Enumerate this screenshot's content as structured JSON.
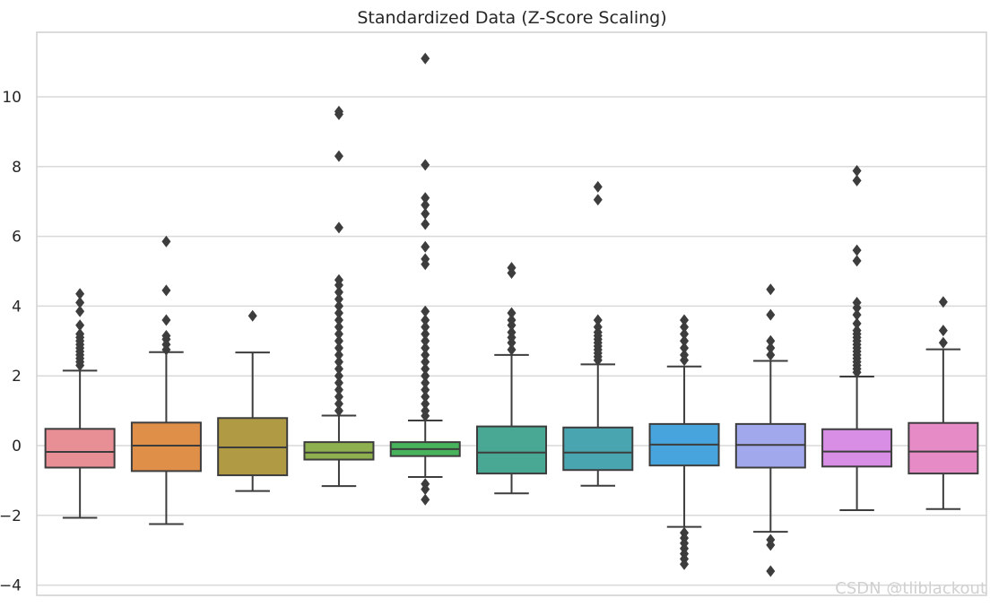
{
  "chart_data": {
    "type": "box",
    "title": "Standardized Data (Z-Score Scaling)",
    "xlabel": "",
    "ylabel": "",
    "ylim": [
      -4.2,
      11.8
    ],
    "yticks": [
      -4,
      -2,
      0,
      2,
      4,
      6,
      8,
      10
    ],
    "grid": true,
    "boxes": [
      {
        "color": "#e88f95",
        "q1": -0.63,
        "median": -0.18,
        "q3": 0.48,
        "whisker_low": -2.07,
        "whisker_high": 2.15,
        "outliers": [
          2.3,
          2.4,
          2.5,
          2.6,
          2.7,
          2.8,
          2.9,
          3.0,
          3.1,
          3.2,
          3.45,
          3.85,
          4.1,
          4.35
        ]
      },
      {
        "color": "#e08f48",
        "q1": -0.73,
        "median": 0.0,
        "q3": 0.66,
        "whisker_low": -2.25,
        "whisker_high": 2.68,
        "outliers": [
          2.75,
          2.9,
          3.05,
          3.15,
          3.6,
          4.45,
          5.85
        ]
      },
      {
        "color": "#b09a43",
        "q1": -0.85,
        "median": -0.05,
        "q3": 0.79,
        "whisker_low": -1.3,
        "whisker_high": 2.67,
        "outliers": [
          3.72
        ]
      },
      {
        "color": "#8fb04e",
        "q1": -0.4,
        "median": -0.2,
        "q3": 0.1,
        "whisker_low": -1.16,
        "whisker_high": 0.86,
        "outliers": [
          1.0,
          1.2,
          1.4,
          1.6,
          1.8,
          2.0,
          2.2,
          2.4,
          2.6,
          2.8,
          3.0,
          3.2,
          3.4,
          3.6,
          3.8,
          4.0,
          4.2,
          4.4,
          4.6,
          4.75,
          6.25,
          8.3,
          9.5,
          9.58
        ]
      },
      {
        "color": "#47b35c",
        "q1": -0.3,
        "median": -0.1,
        "q3": 0.1,
        "whisker_low": -0.9,
        "whisker_high": 0.72,
        "outliers": [
          -1.1,
          -1.25,
          -1.55,
          0.85,
          1.0,
          1.2,
          1.4,
          1.6,
          1.8,
          2.0,
          2.2,
          2.4,
          2.6,
          2.8,
          3.0,
          3.2,
          3.4,
          3.6,
          3.85,
          5.2,
          5.35,
          5.7,
          6.35,
          6.65,
          6.9,
          7.1,
          8.05,
          11.1
        ]
      },
      {
        "color": "#49a893",
        "q1": -0.8,
        "median": -0.2,
        "q3": 0.55,
        "whisker_low": -1.37,
        "whisker_high": 2.6,
        "outliers": [
          2.75,
          2.95,
          3.1,
          3.25,
          3.45,
          3.6,
          3.8,
          4.95,
          5.1
        ]
      },
      {
        "color": "#49a6b0",
        "q1": -0.7,
        "median": -0.2,
        "q3": 0.52,
        "whisker_low": -1.15,
        "whisker_high": 2.33,
        "outliers": [
          2.45,
          2.55,
          2.65,
          2.75,
          2.85,
          2.95,
          3.05,
          3.15,
          3.25,
          3.4,
          3.6,
          7.05,
          7.42
        ]
      },
      {
        "color": "#47a4dc",
        "q1": -0.57,
        "median": 0.03,
        "q3": 0.62,
        "whisker_low": -2.33,
        "whisker_high": 2.27,
        "outliers": [
          -2.5,
          -2.65,
          -2.8,
          -2.95,
          -3.1,
          -3.25,
          -3.4,
          2.45,
          2.6,
          2.8,
          3.0,
          3.2,
          3.4,
          3.6
        ]
      },
      {
        "color": "#a1a8ec",
        "q1": -0.63,
        "median": 0.02,
        "q3": 0.62,
        "whisker_low": -2.47,
        "whisker_high": 2.43,
        "outliers": [
          -2.7,
          -2.85,
          -3.6,
          2.6,
          2.8,
          3.0,
          3.75,
          4.48
        ]
      },
      {
        "color": "#d98ee6",
        "q1": -0.6,
        "median": -0.17,
        "q3": 0.47,
        "whisker_low": -1.85,
        "whisker_high": 1.98,
        "outliers": [
          2.1,
          2.2,
          2.3,
          2.4,
          2.5,
          2.6,
          2.7,
          2.8,
          2.9,
          3.0,
          3.1,
          3.2,
          3.3,
          3.5,
          3.75,
          3.95,
          4.1,
          5.3,
          5.6,
          7.6,
          7.88
        ]
      },
      {
        "color": "#e78bc7",
        "q1": -0.8,
        "median": -0.17,
        "q3": 0.65,
        "whisker_low": -1.82,
        "whisker_high": 2.76,
        "outliers": [
          2.95,
          3.3,
          4.12
        ]
      }
    ]
  },
  "watermark": "CSDN @tliblackout"
}
